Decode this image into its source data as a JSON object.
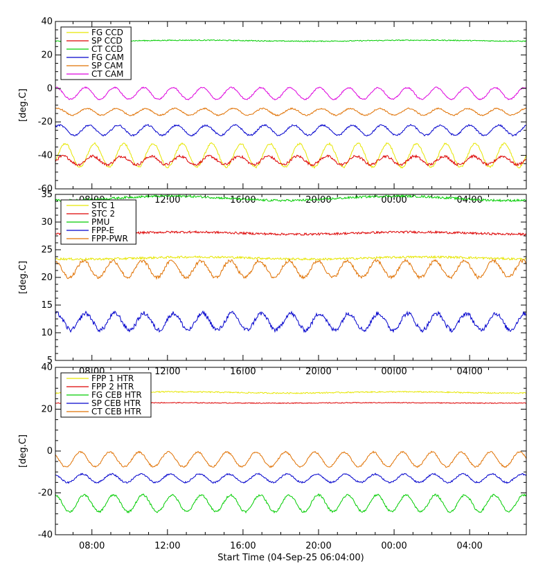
{
  "x_title": "Start Time (04-Sep-25 06:04:00)",
  "chart_data": [
    {
      "type": "line",
      "ylabel": "[deg.C]",
      "ylim": [
        -60,
        40
      ],
      "yticks": [
        40,
        20,
        0,
        -20,
        -40,
        -60
      ],
      "x_tick_labels": [
        "08:00",
        "12:00",
        "16:00",
        "20:00",
        "00:00",
        "04:00"
      ],
      "x_ticks_hours": [
        8,
        12,
        16,
        20,
        24,
        28
      ],
      "xlim_hours": [
        6.0667,
        31.0
      ],
      "legend": "top-left",
      "series": [
        {
          "name": "FG CCD",
          "color": "#e6e600",
          "base": -40,
          "amp": 7,
          "period": 1.55,
          "noise": 0.6
        },
        {
          "name": "SP CCD",
          "color": "#dd0000",
          "base": -43,
          "amp": 2.5,
          "period": 1.55,
          "noise": 0.8
        },
        {
          "name": "CT CCD",
          "color": "#00cc00",
          "base": 28.5,
          "amp": 0.3,
          "period": 12,
          "noise": 0.3
        },
        {
          "name": "FG CAM",
          "color": "#0000cc",
          "base": -25,
          "amp": 3,
          "period": 1.55,
          "noise": 0.5
        },
        {
          "name": "SP CAM",
          "color": "#e07000",
          "base": -14,
          "amp": 2,
          "period": 1.55,
          "noise": 0.4
        },
        {
          "name": "CT CAM",
          "color": "#dd00dd",
          "base": -3,
          "amp": 3.5,
          "period": 1.55,
          "noise": 0.4
        }
      ]
    },
    {
      "type": "line",
      "ylabel": "[deg.C]",
      "ylim": [
        5,
        35
      ],
      "yticks": [
        35,
        30,
        25,
        20,
        15,
        10,
        5
      ],
      "x_tick_labels": [
        "08:00",
        "12:00",
        "16:00",
        "20:00",
        "00:00",
        "04:00"
      ],
      "x_ticks_hours": [
        8,
        12,
        16,
        20,
        24,
        28
      ],
      "xlim_hours": [
        6.0667,
        31.0
      ],
      "legend": "top-left",
      "series": [
        {
          "name": "STC 1",
          "color": "#e6e600",
          "base": 23.5,
          "amp": 0.2,
          "period": 12,
          "noise": 0.2
        },
        {
          "name": "STC 2",
          "color": "#dd0000",
          "base": 28,
          "amp": 0.2,
          "period": 12,
          "noise": 0.2
        },
        {
          "name": "PMU",
          "color": "#00cc00",
          "base": 34.3,
          "amp": 0.4,
          "period": 12,
          "noise": 0.2
        },
        {
          "name": "FPP-E",
          "color": "#0000cc",
          "base": 12,
          "amp": 1.5,
          "period": 1.55,
          "noise": 0.4
        },
        {
          "name": "FPP-PWR",
          "color": "#e07000",
          "base": 21.5,
          "amp": 1.5,
          "period": 1.55,
          "noise": 0.3
        }
      ]
    },
    {
      "type": "line",
      "ylabel": "[deg.C]",
      "ylim": [
        -40,
        40
      ],
      "yticks": [
        40,
        20,
        0,
        -20,
        -40
      ],
      "x_tick_labels": [
        "08:00",
        "12:00",
        "16:00",
        "20:00",
        "00:00",
        "04:00"
      ],
      "x_ticks_hours": [
        8,
        12,
        16,
        20,
        24,
        28
      ],
      "xlim_hours": [
        6.0667,
        31.0
      ],
      "legend": "top-left",
      "series": [
        {
          "name": "FPP 1 HTR",
          "color": "#e6e600",
          "base": 28,
          "amp": 0.3,
          "period": 12,
          "noise": 0.3
        },
        {
          "name": "FPP 2 HTR",
          "color": "#dd0000",
          "base": 23,
          "amp": 0.1,
          "period": 12,
          "noise": 0.2
        },
        {
          "name": "FG CEB HTR",
          "color": "#00cc00",
          "base": -25,
          "amp": 4,
          "period": 1.55,
          "noise": 0.5
        },
        {
          "name": "SP CEB HTR",
          "color": "#0000cc",
          "base": -13,
          "amp": 2,
          "period": 1.55,
          "noise": 0.4
        },
        {
          "name": "CT CEB HTR",
          "color": "#e07000",
          "base": -4,
          "amp": 3.5,
          "period": 1.55,
          "noise": 0.4
        }
      ]
    }
  ]
}
